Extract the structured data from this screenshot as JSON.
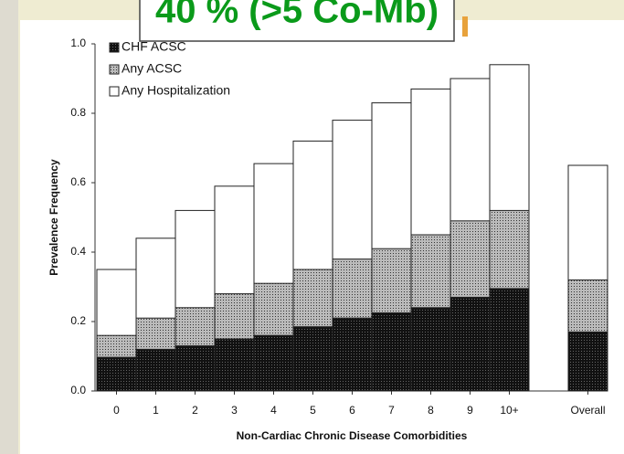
{
  "slide_title": "40 % (>5 Co-Mb)",
  "chart_data": {
    "type": "overlaid-bar",
    "x_label": "Non-Cardiac Chronic Disease Comorbidities",
    "y_label": "Prevalence Frequency",
    "categories": [
      "0",
      "1",
      "2",
      "3",
      "4",
      "5",
      "6",
      "7",
      "8",
      "9",
      "10+",
      null,
      "Overall"
    ],
    "series": [
      {
        "name": "CHF ACSC",
        "color": "#111111",
        "values": [
          0.097,
          0.12,
          0.13,
          0.15,
          0.16,
          0.185,
          0.21,
          0.225,
          0.24,
          0.27,
          0.295,
          null,
          0.17
        ]
      },
      {
        "name": "Any ACSC",
        "color": "#bbbbbb",
        "values": [
          0.16,
          0.21,
          0.24,
          0.28,
          0.31,
          0.35,
          0.38,
          0.41,
          0.45,
          0.49,
          0.52,
          null,
          0.32
        ]
      },
      {
        "name": "Any Hospitalization",
        "color": "#ffffff",
        "values": [
          0.35,
          0.44,
          0.52,
          0.59,
          0.655,
          0.72,
          0.78,
          0.83,
          0.87,
          0.9,
          0.94,
          null,
          0.65
        ]
      }
    ],
    "ylim": [
      0,
      1
    ],
    "yticks": [
      {
        "value": 0,
        "label": "0.0"
      },
      {
        "value": 0.2,
        "label": "0.2"
      },
      {
        "value": 0.4,
        "label": "0.4"
      },
      {
        "value": 0.6,
        "label": "0.6"
      },
      {
        "value": 0.8,
        "label": "0.8"
      },
      {
        "value": 1,
        "label": "1.0"
      }
    ],
    "legend": "top-left"
  }
}
